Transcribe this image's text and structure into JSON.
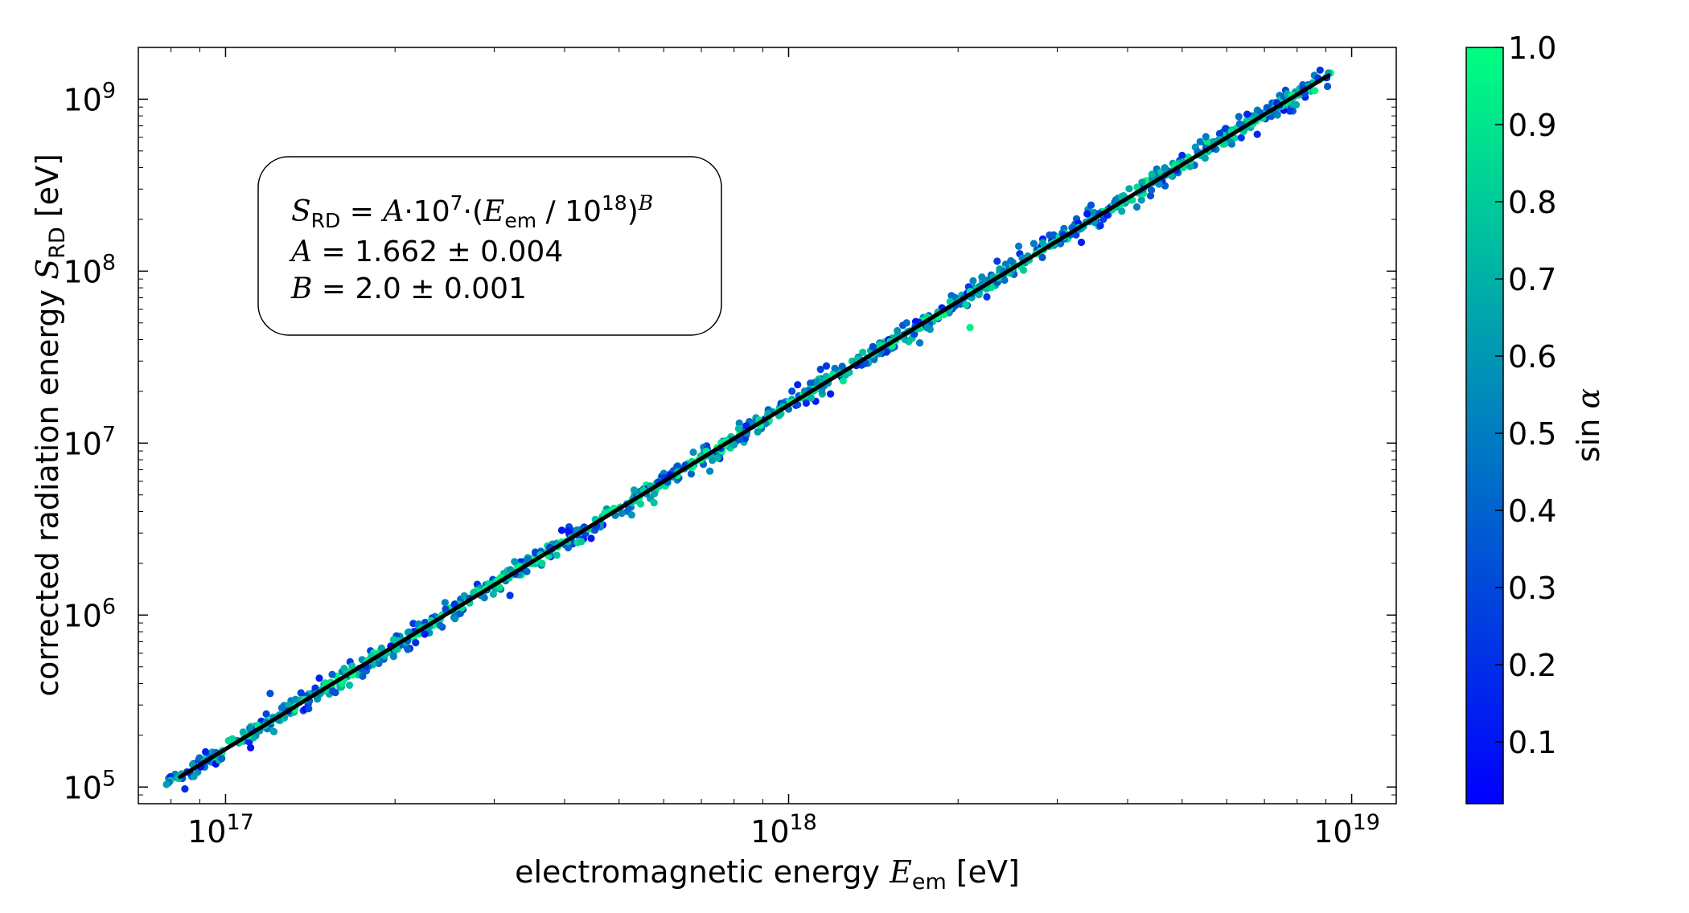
{
  "chart_data": {
    "type": "scatter",
    "x_scale": "log",
    "y_scale": "log",
    "xlim": [
      7e+16,
      1.2e+19
    ],
    "ylim": [
      80000.0,
      2000000000.0
    ],
    "x_ticks": [
      {
        "value": 1e+17,
        "base": "10",
        "exp": "17"
      },
      {
        "value": 1e+18,
        "base": "10",
        "exp": "18"
      },
      {
        "value": 1e+19,
        "base": "10",
        "exp": "19"
      }
    ],
    "y_ticks": [
      {
        "value": 100000.0,
        "base": "10",
        "exp": "5"
      },
      {
        "value": 1000000.0,
        "base": "10",
        "exp": "6"
      },
      {
        "value": 10000000.0,
        "base": "10",
        "exp": "7"
      },
      {
        "value": 100000000.0,
        "base": "10",
        "exp": "8"
      },
      {
        "value": 1000000000.0,
        "base": "10",
        "exp": "9"
      }
    ],
    "xlabel": {
      "prefix": "electromagnetic energy ",
      "symbol": "E",
      "subscript": "em",
      "suffix": " [eV]"
    },
    "ylabel": {
      "prefix": "corrected radiation energy ",
      "symbol": "S",
      "subscript": "RD",
      "suffix": " [eV]"
    },
    "colorbar": {
      "label_prefix": "sin ",
      "label_symbol": "α",
      "range": [
        0.02,
        1.0
      ],
      "tick_labels": [
        "0.1",
        "0.2",
        "0.3",
        "0.4",
        "0.5",
        "0.6",
        "0.7",
        "0.8",
        "0.9",
        "1.0"
      ],
      "tick_values": [
        0.1,
        0.2,
        0.3,
        0.4,
        0.5,
        0.6,
        0.7,
        0.8,
        0.9,
        1.0
      ],
      "color_low": "#0000ff",
      "color_high": "#00ff80"
    },
    "fit": {
      "formula": "S_RD = A·10^7·(E_em / 10^18)^B",
      "A": "1.662",
      "A_err": "0.004",
      "B": "2.0",
      "B_err": "0.001",
      "norm": 16620000.0,
      "exponent": 2.0,
      "x_range": [
        8.3e+16,
        9.1e+18
      ],
      "color": "#000000"
    },
    "points": {
      "count": 1200,
      "x_range": [
        7.8e+16,
        9.2e+18
      ],
      "scatter_dex": 0.04,
      "marker_color_map": "winter"
    },
    "outliers": [
      {
        "x": 2.1e+18,
        "y": 47000000.0,
        "sin_alpha": 0.95
      },
      {
        "x": 1.25e+18,
        "y": 23000000.0,
        "sin_alpha": 0.9
      },
      {
        "x": 3.2e+17,
        "y": 1300000.0,
        "sin_alpha": 0.2
      },
      {
        "x": 1.2e+17,
        "y": 350000.0,
        "sin_alpha": 0.3
      },
      {
        "x": 8.6e+18,
        "y": 1120000000.0,
        "sin_alpha": 0.95
      }
    ]
  },
  "legend_box": {
    "line1": {
      "lhs_symbol": "S",
      "lhs_sub": "RD",
      "eq": " = ",
      "a_symbol": "A",
      "dot": "·10",
      "pow7": "7",
      "paren_open": "·(",
      "e_symbol": "E",
      "e_sub": "em",
      "div": " / 10",
      "pow18": "18",
      "paren_close": ")",
      "b_symbol": "B"
    },
    "line2": {
      "symbol": "A",
      "text": " = 1.662 ± 0.004"
    },
    "line3": {
      "symbol": "B",
      "text": " = 2.0 ± 0.001"
    }
  }
}
